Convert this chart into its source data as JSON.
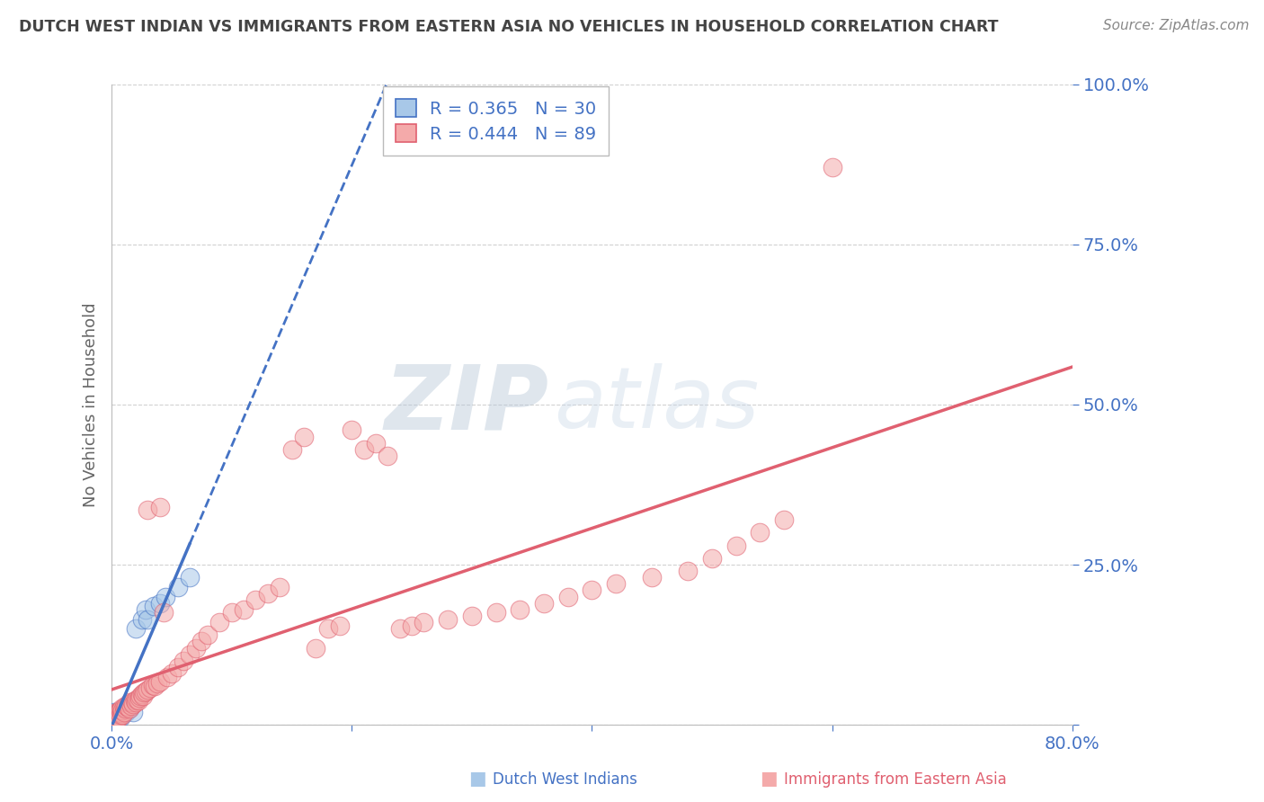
{
  "title": "DUTCH WEST INDIAN VS IMMIGRANTS FROM EASTERN ASIA NO VEHICLES IN HOUSEHOLD CORRELATION CHART",
  "source": "Source: ZipAtlas.com",
  "ylabel": "No Vehicles in Household",
  "xlim": [
    0.0,
    0.8
  ],
  "ylim": [
    0.0,
    1.0
  ],
  "blue_R": 0.365,
  "blue_N": 30,
  "pink_R": 0.444,
  "pink_N": 89,
  "blue_color": "#a8c8e8",
  "pink_color": "#f4aaaa",
  "blue_line_color": "#4472c4",
  "pink_line_color": "#e06070",
  "tick_color": "#4472c4",
  "watermark_color": "#d0dce8",
  "grid_color": "#cccccc",
  "title_color": "#444444",
  "source_color": "#888888",
  "ylabel_color": "#666666",
  "blue_scatter_x": [
    0.001,
    0.001,
    0.001,
    0.002,
    0.002,
    0.002,
    0.003,
    0.003,
    0.004,
    0.004,
    0.005,
    0.005,
    0.006,
    0.007,
    0.008,
    0.009,
    0.01,
    0.011,
    0.012,
    0.015,
    0.018,
    0.02,
    0.025,
    0.028,
    0.03,
    0.035,
    0.04,
    0.045,
    0.055,
    0.065
  ],
  "blue_scatter_y": [
    0.005,
    0.01,
    0.015,
    0.005,
    0.012,
    0.02,
    0.008,
    0.015,
    0.01,
    0.018,
    0.01,
    0.02,
    0.015,
    0.012,
    0.015,
    0.02,
    0.025,
    0.022,
    0.02,
    0.025,
    0.02,
    0.15,
    0.165,
    0.18,
    0.165,
    0.185,
    0.19,
    0.2,
    0.215,
    0.23
  ],
  "pink_scatter_x": [
    0.001,
    0.001,
    0.002,
    0.002,
    0.003,
    0.003,
    0.004,
    0.004,
    0.005,
    0.005,
    0.006,
    0.006,
    0.007,
    0.007,
    0.008,
    0.008,
    0.009,
    0.009,
    0.01,
    0.01,
    0.011,
    0.012,
    0.013,
    0.014,
    0.015,
    0.015,
    0.016,
    0.017,
    0.018,
    0.019,
    0.02,
    0.021,
    0.022,
    0.023,
    0.024,
    0.025,
    0.026,
    0.027,
    0.028,
    0.03,
    0.032,
    0.034,
    0.036,
    0.038,
    0.04,
    0.043,
    0.046,
    0.05,
    0.055,
    0.06,
    0.065,
    0.07,
    0.075,
    0.08,
    0.09,
    0.1,
    0.11,
    0.12,
    0.13,
    0.14,
    0.15,
    0.16,
    0.17,
    0.18,
    0.19,
    0.2,
    0.21,
    0.22,
    0.23,
    0.24,
    0.25,
    0.26,
    0.28,
    0.3,
    0.32,
    0.34,
    0.36,
    0.38,
    0.4,
    0.42,
    0.45,
    0.48,
    0.5,
    0.52,
    0.54,
    0.56,
    0.03,
    0.04,
    0.6
  ],
  "pink_scatter_y": [
    0.005,
    0.01,
    0.008,
    0.015,
    0.01,
    0.018,
    0.012,
    0.02,
    0.01,
    0.018,
    0.012,
    0.02,
    0.015,
    0.022,
    0.018,
    0.025,
    0.015,
    0.022,
    0.02,
    0.028,
    0.025,
    0.03,
    0.028,
    0.032,
    0.025,
    0.035,
    0.03,
    0.035,
    0.032,
    0.038,
    0.035,
    0.04,
    0.038,
    0.042,
    0.045,
    0.048,
    0.045,
    0.05,
    0.052,
    0.055,
    0.058,
    0.062,
    0.06,
    0.065,
    0.068,
    0.175,
    0.075,
    0.08,
    0.09,
    0.1,
    0.11,
    0.12,
    0.13,
    0.14,
    0.16,
    0.175,
    0.18,
    0.195,
    0.205,
    0.215,
    0.43,
    0.45,
    0.12,
    0.15,
    0.155,
    0.46,
    0.43,
    0.44,
    0.42,
    0.15,
    0.155,
    0.16,
    0.165,
    0.17,
    0.175,
    0.18,
    0.19,
    0.2,
    0.21,
    0.22,
    0.23,
    0.24,
    0.26,
    0.28,
    0.3,
    0.32,
    0.335,
    0.34,
    0.87
  ]
}
